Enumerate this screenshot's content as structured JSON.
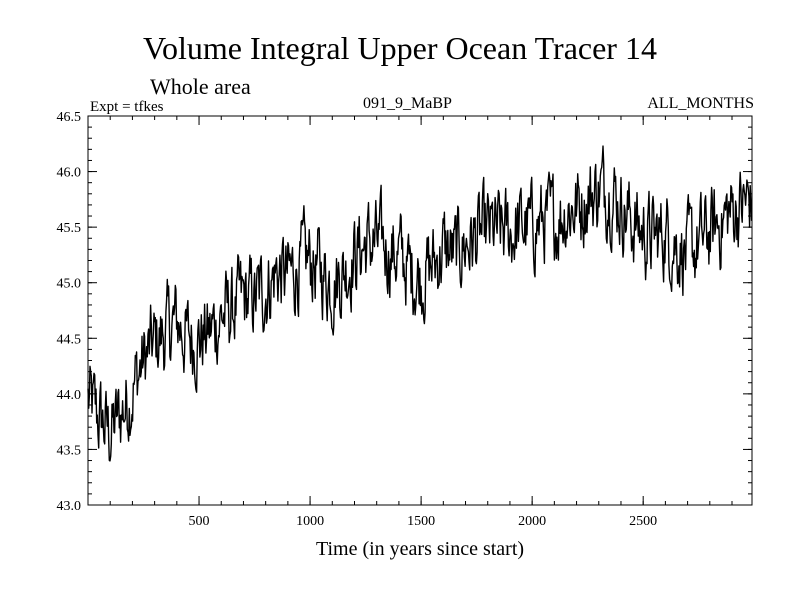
{
  "header": {
    "experiment": "Expt = tfkes",
    "run_id": "091_9_MaBP",
    "months": "ALL_MONTHS"
  },
  "chart_data": {
    "type": "line",
    "title": "Volume Integral Upper Ocean Tracer 14",
    "subtitle": "Whole area",
    "xlabel": "Time (in years since start)",
    "ylabel": "",
    "xlim": [
      0,
      2990
    ],
    "ylim": [
      43.0,
      46.5
    ],
    "x_ticks": [
      500,
      1000,
      1500,
      2000,
      2500
    ],
    "x_tick_labels": [
      "500",
      "1000",
      "1500",
      "2000",
      "2500"
    ],
    "y_ticks": [
      43.0,
      43.5,
      44.0,
      44.5,
      45.0,
      45.5,
      46.0,
      46.5
    ],
    "y_tick_labels": [
      "43.0",
      "43.5",
      "44.0",
      "44.5",
      "45.0",
      "45.5",
      "46.0",
      "46.5"
    ],
    "grid": false,
    "line_color": "#000000",
    "series": [
      {
        "name": "",
        "x": [
          0,
          40,
          80,
          100,
          130,
          180,
          250,
          300,
          350,
          400,
          450,
          500,
          550,
          600,
          650,
          700,
          750,
          800,
          850,
          900,
          950,
          1000,
          1050,
          1100,
          1150,
          1200,
          1250,
          1300,
          1350,
          1400,
          1450,
          1500,
          1550,
          1600,
          1650,
          1700,
          1750,
          1800,
          1850,
          1900,
          1950,
          2000,
          2050,
          2100,
          2150,
          2200,
          2250,
          2300,
          2350,
          2400,
          2450,
          2500,
          2550,
          2600,
          2650,
          2700,
          2750,
          2800,
          2850,
          2900,
          2950,
          2990
        ],
        "values": [
          43.95,
          43.8,
          43.7,
          43.65,
          43.75,
          43.95,
          44.3,
          44.45,
          44.55,
          44.65,
          44.5,
          44.5,
          44.55,
          44.7,
          44.75,
          44.85,
          44.85,
          44.95,
          45.1,
          45.05,
          45.15,
          45.2,
          45.1,
          45.0,
          45.1,
          45.25,
          45.35,
          45.35,
          45.3,
          45.25,
          45.1,
          45.05,
          45.15,
          45.3,
          45.25,
          45.35,
          45.4,
          45.45,
          45.45,
          45.45,
          45.5,
          45.5,
          45.55,
          45.55,
          45.65,
          45.7,
          45.75,
          45.85,
          45.85,
          45.7,
          45.55,
          45.45,
          45.4,
          45.45,
          45.35,
          45.25,
          45.35,
          45.45,
          45.55,
          45.65,
          45.7,
          45.75
        ]
      }
    ]
  }
}
